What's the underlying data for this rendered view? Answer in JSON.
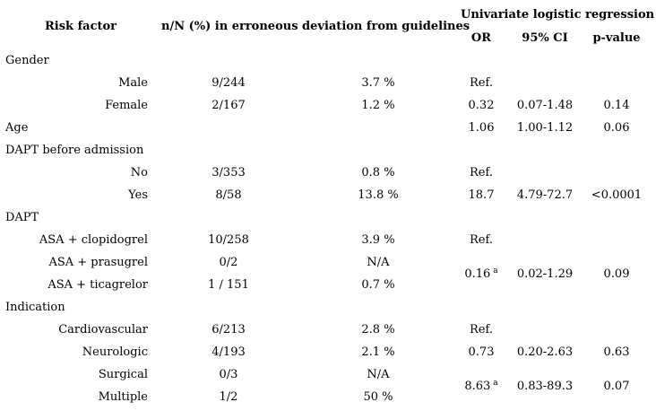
{
  "table": {
    "headers": {
      "risk_factor": "Risk factor",
      "deviation": "n/N (%) in erroneous deviation from guidelines",
      "univariate": "Univariate logistic regression",
      "or": "OR",
      "ci": "95% CI",
      "p": "p-value"
    },
    "rows": [
      {
        "type": "category",
        "label": "Gender"
      },
      {
        "type": "sub",
        "label": "Male",
        "nN": "9/244",
        "pct": "3.7 %",
        "or": "Ref."
      },
      {
        "type": "sub",
        "label": "Female",
        "nN": "2/167",
        "pct": "1.2 %",
        "or": "0.32",
        "ci": "0.07-1.48",
        "p": "0.14"
      },
      {
        "type": "category",
        "label": "Age",
        "or": "1.06",
        "ci": "1.00-1.12",
        "p": "0.06"
      },
      {
        "type": "category",
        "label": "DAPT before admission"
      },
      {
        "type": "sub",
        "label": "No",
        "nN": "3/353",
        "pct": "0.8 %",
        "or": "Ref."
      },
      {
        "type": "sub",
        "label": "Yes",
        "nN": "8/58",
        "pct": "13.8 %",
        "or": "18.7",
        "ci": "4.79-72.7",
        "p": "<0.0001"
      },
      {
        "type": "category",
        "label": "DAPT"
      },
      {
        "type": "sub",
        "label": "ASA + clopidogrel",
        "nN": "10/258",
        "pct": "3.9 %",
        "or": "Ref."
      },
      {
        "type": "sub",
        "label": "ASA + prasugrel",
        "nN": "0/2",
        "pct": "N/A",
        "or": "0.16",
        "or_sup": "a",
        "ci": "0.02-1.29",
        "p": "0.09",
        "rowspan": 2
      },
      {
        "type": "sub",
        "label": "ASA + ticagrelor",
        "nN": "1 / 151",
        "pct": "0.7 %"
      },
      {
        "type": "category",
        "label": "Indication"
      },
      {
        "type": "sub",
        "label": "Cardiovascular",
        "nN": "6/213",
        "pct": "2.8 %",
        "or": "Ref."
      },
      {
        "type": "sub",
        "label": "Neurologic",
        "nN": "4/193",
        "pct": "2.1 %",
        "or": "0.73",
        "ci": "0.20-2.63",
        "p": "0.63"
      },
      {
        "type": "sub",
        "label": "Surgical",
        "nN": "0/3",
        "pct": "N/A",
        "or": "8.63",
        "or_sup": "a",
        "ci": "0.83-89.3",
        "p": "0.07",
        "rowspan": 2
      },
      {
        "type": "sub",
        "label": "Multiple",
        "nN": "1/2",
        "pct": "50 %"
      }
    ]
  }
}
